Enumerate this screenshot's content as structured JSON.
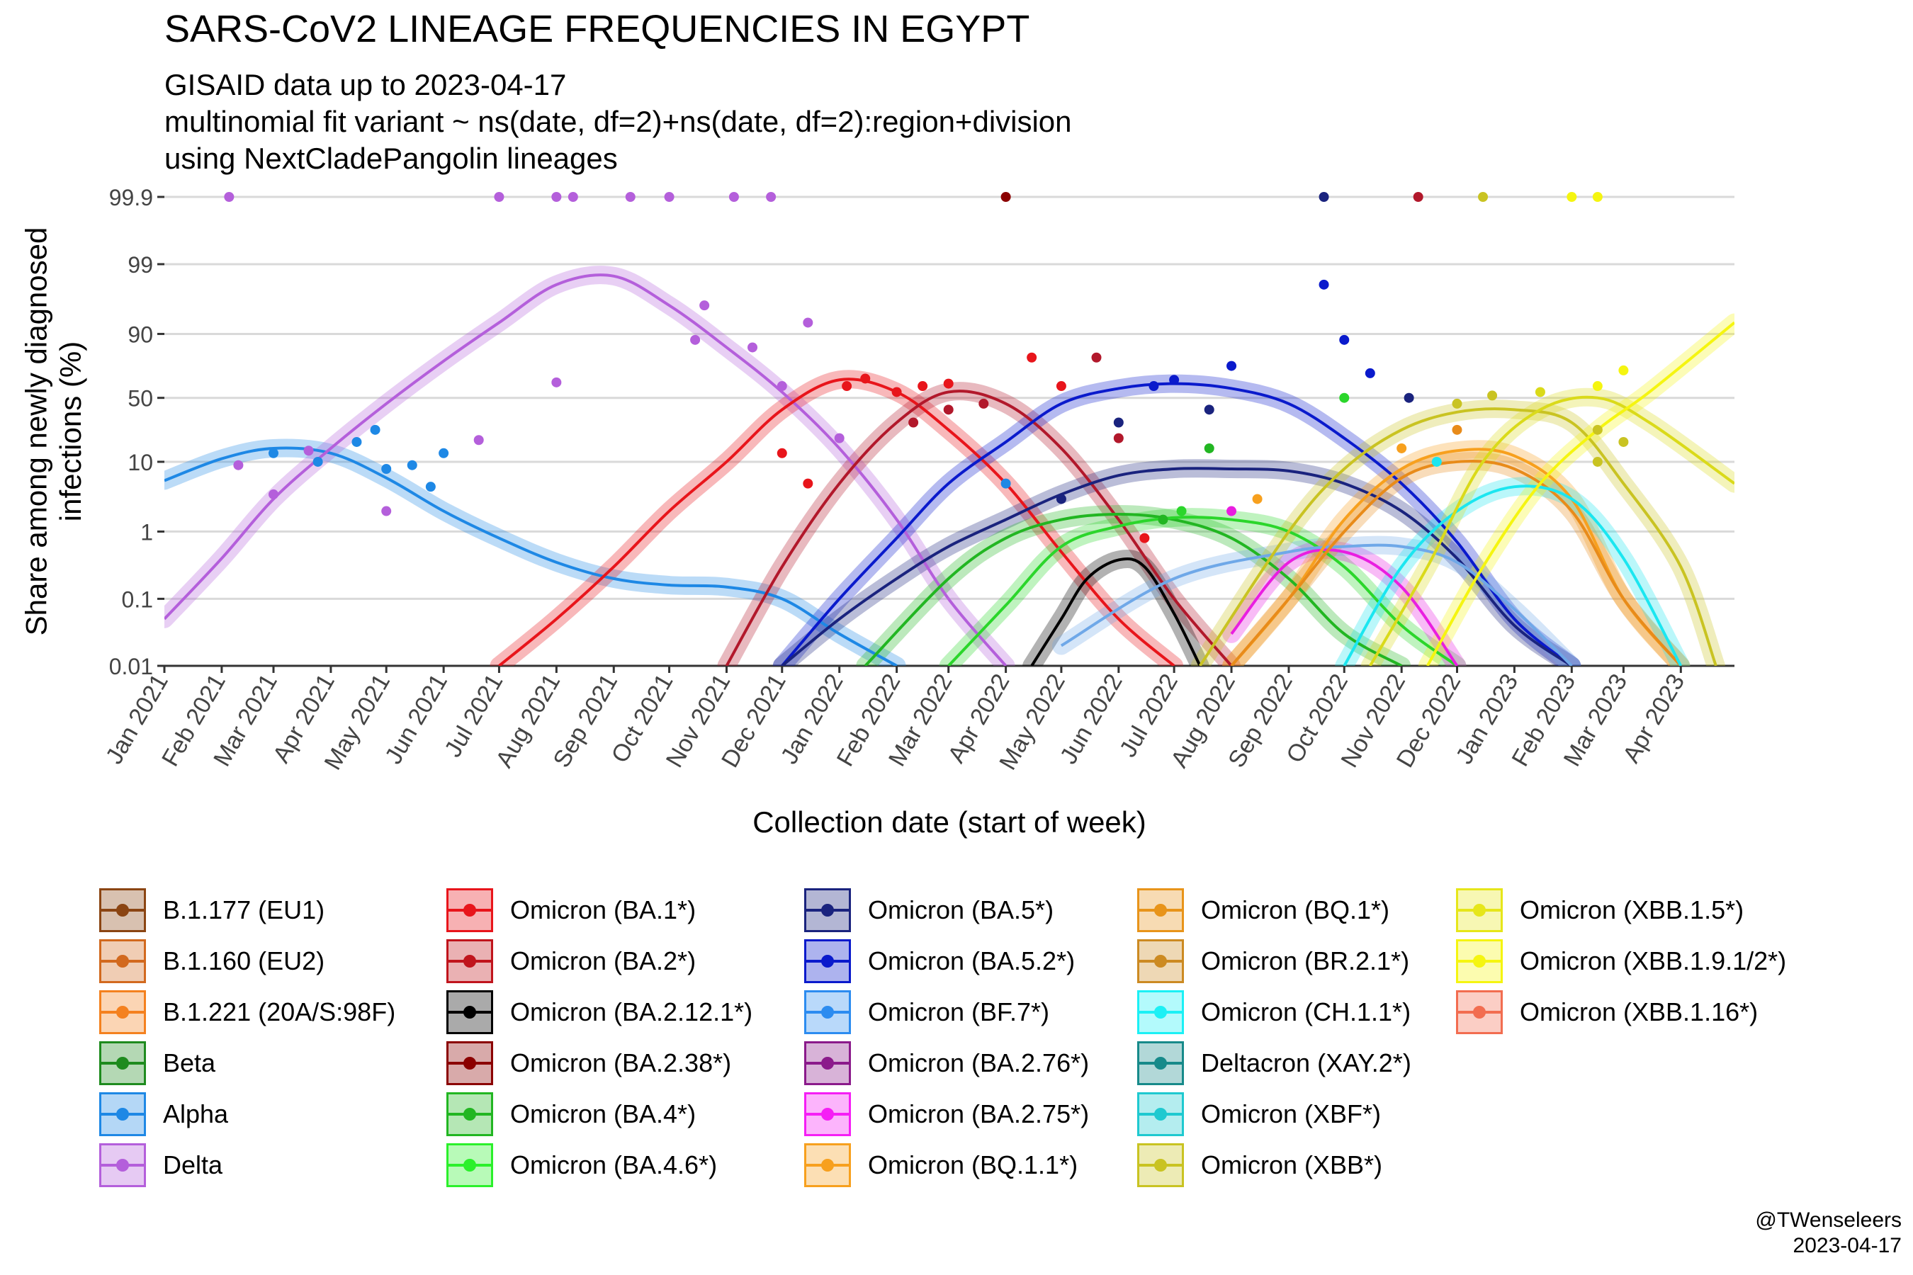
{
  "header": {
    "title": "SARS-CoV2 LINEAGE FREQUENCIES IN EGYPT",
    "subtitle": "GISAID data up to 2023-04-17\nmultinomial fit variant ~ ns(date, df=2)+ns(date, df=2):region+division\nusing NextCladePangolin lineages"
  },
  "caption": {
    "line1": "@TWenseleers",
    "line2": "2023-04-17"
  },
  "chart_data": {
    "type": "line",
    "xlabel": "Collection date (start of week)",
    "ylabel": "Share among newly diagnosed infections (%)",
    "y_scale": "logit",
    "y_ticks": [
      "0.01",
      "0.1",
      "1",
      "10",
      "50",
      "90",
      "99",
      "99.9"
    ],
    "x_ticks": [
      "Jan 2021",
      "Feb 2021",
      "Mar 2021",
      "Apr 2021",
      "May 2021",
      "Jun 2021",
      "Jul 2021",
      "Aug 2021",
      "Sep 2021",
      "Oct 2021",
      "Nov 2021",
      "Dec 2021",
      "Jan 2022",
      "Feb 2022",
      "Mar 2022",
      "Apr 2022",
      "May 2022",
      "Jun 2022",
      "Jul 2022",
      "Aug 2022",
      "Sep 2022",
      "Oct 2022",
      "Nov 2022",
      "Dec 2022",
      "Jan 2023",
      "Feb 2023",
      "Mar 2023",
      "Apr 2023"
    ],
    "xlim": [
      "2021-01-01",
      "2023-04-30"
    ],
    "ylim": [
      0.01,
      99.9
    ],
    "series": [
      {
        "name": "Alpha",
        "color": "#1E88E5",
        "peak_date": "2021-03-10",
        "x": [
          "2021-01-01",
          "2021-02-01",
          "2021-03-01",
          "2021-04-01",
          "2021-05-01",
          "2021-06-01",
          "2021-07-01",
          "2021-08-01",
          "2021-09-01",
          "2021-10-01",
          "2021-11-01",
          "2021-12-01",
          "2022-01-01",
          "2022-02-01"
        ],
        "values": [
          5.5,
          11,
          15,
          13,
          6,
          2,
          0.8,
          0.35,
          0.2,
          0.16,
          0.15,
          0.1,
          0.03,
          0.01
        ]
      },
      {
        "name": "Delta",
        "color": "#B45FDB",
        "peak_date": "2021-08-25",
        "x": [
          "2021-01-01",
          "2021-02-01",
          "2021-03-01",
          "2021-04-01",
          "2021-05-01",
          "2021-06-01",
          "2021-07-01",
          "2021-08-01",
          "2021-09-01",
          "2021-10-01",
          "2021-11-01",
          "2021-12-01",
          "2022-01-01",
          "2022-02-01",
          "2022-03-01",
          "2022-04-01"
        ],
        "values": [
          0.05,
          0.4,
          3,
          15,
          45,
          78,
          93,
          98,
          98.5,
          96,
          85,
          55,
          15,
          1.5,
          0.1,
          0.01
        ]
      },
      {
        "name": "Omicron (BA.1*)",
        "color": "#E8151B",
        "peak_date": "2022-01-15",
        "x": [
          "2021-07-01",
          "2021-08-01",
          "2021-09-01",
          "2021-10-01",
          "2021-11-01",
          "2021-12-01",
          "2022-01-01",
          "2022-02-01",
          "2022-03-01",
          "2022-04-01",
          "2022-05-01",
          "2022-06-01",
          "2022-07-01"
        ],
        "values": [
          0.01,
          0.05,
          0.3,
          2,
          10,
          40,
          65,
          55,
          25,
          5,
          0.5,
          0.05,
          0.01
        ]
      },
      {
        "name": "Omicron (BA.2*)",
        "color": "#B2182B",
        "peak_date": "2022-03-10",
        "x": [
          "2021-11-01",
          "2021-12-01",
          "2022-01-01",
          "2022-02-01",
          "2022-03-01",
          "2022-04-01",
          "2022-05-01",
          "2022-06-01",
          "2022-07-01",
          "2022-08-01"
        ],
        "values": [
          0.01,
          0.3,
          5,
          30,
          55,
          45,
          15,
          1.5,
          0.1,
          0.01
        ]
      },
      {
        "name": "Omicron (BA.5.2*)",
        "color": "#0A1ACC",
        "peak_date": "2022-07-01",
        "x": [
          "2021-12-01",
          "2022-01-01",
          "2022-02-01",
          "2022-03-01",
          "2022-04-01",
          "2022-05-01",
          "2022-06-01",
          "2022-07-01",
          "2022-08-01",
          "2022-09-01",
          "2022-10-01",
          "2022-11-01",
          "2022-12-01",
          "2023-01-01",
          "2023-02-01"
        ],
        "values": [
          0.01,
          0.1,
          0.8,
          5,
          18,
          45,
          58,
          62,
          58,
          45,
          20,
          5,
          0.7,
          0.05,
          0.01
        ]
      },
      {
        "name": "Omicron (BA.5*)",
        "color": "#1A237E",
        "peak_date": "2022-08-15",
        "x": [
          "2021-12-01",
          "2022-01-01",
          "2022-02-01",
          "2022-03-01",
          "2022-04-01",
          "2022-05-01",
          "2022-06-01",
          "2022-07-01",
          "2022-08-01",
          "2022-09-01",
          "2022-10-01",
          "2022-11-01",
          "2022-12-01",
          "2023-01-01",
          "2023-02-01"
        ],
        "values": [
          0.01,
          0.05,
          0.2,
          0.6,
          1.5,
          3.5,
          6.5,
          8,
          8,
          7.5,
          5,
          2,
          0.4,
          0.04,
          0.01
        ]
      },
      {
        "name": "Omicron (BA.4*)",
        "color": "#22B622",
        "peak_date": "2022-06-15",
        "x": [
          "2022-01-15",
          "2022-03-01",
          "2022-04-01",
          "2022-05-01",
          "2022-06-01",
          "2022-07-01",
          "2022-08-01",
          "2022-09-01",
          "2022-10-01",
          "2022-11-01"
        ],
        "values": [
          0.01,
          0.2,
          0.8,
          1.5,
          1.8,
          1.5,
          0.8,
          0.2,
          0.03,
          0.01
        ]
      },
      {
        "name": "Omicron (BA.4.6*)",
        "color": "#2BD62B",
        "peak_date": "2022-07-15",
        "x": [
          "2022-03-01",
          "2022-04-01",
          "2022-05-01",
          "2022-06-01",
          "2022-07-01",
          "2022-08-01",
          "2022-09-01",
          "2022-10-01",
          "2022-11-01",
          "2022-12-01"
        ],
        "values": [
          0.01,
          0.08,
          0.6,
          1.2,
          1.6,
          1.5,
          1,
          0.3,
          0.04,
          0.01
        ]
      },
      {
        "name": "Omicron (BA.2.12.1*)",
        "color": "#000000",
        "peak_date": "2022-06-10",
        "x": [
          "2022-04-15",
          "2022-05-01",
          "2022-05-15",
          "2022-06-01",
          "2022-06-15",
          "2022-07-01",
          "2022-07-15"
        ],
        "values": [
          0.01,
          0.05,
          0.2,
          0.38,
          0.3,
          0.06,
          0.01
        ]
      },
      {
        "name": "Omicron (BA.2.75*)",
        "color": "#E91EE0",
        "peak_date": "2022-09-25",
        "x": [
          "2022-08-01",
          "2022-09-01",
          "2022-10-01",
          "2022-11-01",
          "2022-12-01"
        ],
        "values": [
          0.03,
          0.35,
          0.5,
          0.15,
          0.01
        ]
      },
      {
        "name": "Omicron (BF.7*)",
        "color": "#6FA8E8",
        "peak_date": "2022-10-20",
        "x": [
          "2022-05-01",
          "2022-07-01",
          "2022-09-01",
          "2022-10-01",
          "2022-11-01",
          "2022-12-01",
          "2023-01-01",
          "2023-02-01"
        ],
        "values": [
          0.02,
          0.2,
          0.5,
          0.6,
          0.6,
          0.35,
          0.07,
          0.01
        ]
      },
      {
        "name": "Omicron (BQ.1.1*)",
        "color": "#F7A01E",
        "peak_date": "2022-12-20",
        "x": [
          "2022-08-01",
          "2022-09-01",
          "2022-10-01",
          "2022-11-01",
          "2022-12-01",
          "2023-01-01",
          "2023-02-01",
          "2023-03-01",
          "2023-04-01"
        ],
        "values": [
          0.01,
          0.1,
          1.5,
          8,
          14,
          12,
          3,
          0.1,
          0.01
        ]
      },
      {
        "name": "Omicron (BQ.1*)",
        "color": "#E88B1A",
        "peak_date": "2022-12-15",
        "x": [
          "2022-08-01",
          "2022-09-01",
          "2022-10-01",
          "2022-11-01",
          "2022-12-01",
          "2023-01-01",
          "2023-02-01",
          "2023-03-01",
          "2023-04-01"
        ],
        "values": [
          0.01,
          0.1,
          1,
          6,
          10,
          8,
          2,
          0.1,
          0.01
        ]
      },
      {
        "name": "Omicron (CH.1.1*)",
        "color": "#1BE6F0",
        "peak_date": "2023-01-15",
        "x": [
          "2022-10-01",
          "2022-11-01",
          "2022-12-01",
          "2023-01-01",
          "2023-02-01",
          "2023-03-01",
          "2023-04-01"
        ],
        "values": [
          0.01,
          0.3,
          2,
          4.5,
          3,
          0.4,
          0.01
        ]
      },
      {
        "name": "Omicron (XBB*)",
        "color": "#C9C322",
        "peak_date": "2022-12-20",
        "x": [
          "2022-07-15",
          "2022-09-01",
          "2022-10-01",
          "2022-11-01",
          "2022-12-01",
          "2023-01-01",
          "2023-02-01",
          "2023-03-01",
          "2023-04-01",
          "2023-04-20"
        ],
        "values": [
          0.01,
          1,
          8,
          25,
          38,
          40,
          30,
          5,
          0.3,
          0.01
        ]
      },
      {
        "name": "Omicron (XBB.1.5*)",
        "color": "#DADA1A",
        "peak_date": "2023-02-01",
        "x": [
          "2022-10-15",
          "2022-11-15",
          "2022-12-15",
          "2023-01-15",
          "2023-02-15",
          "2023-03-15",
          "2023-04-30"
        ],
        "values": [
          0.01,
          0.3,
          10,
          40,
          50,
          30,
          5
        ]
      },
      {
        "name": "Omicron (XBB.1.9.1/2*)",
        "color": "#F5F510",
        "peak_date": "2023-04-30",
        "x": [
          "2022-11-15",
          "2022-12-15",
          "2023-01-15",
          "2023-02-15",
          "2023-03-15",
          "2023-04-30"
        ],
        "values": [
          0.01,
          0.3,
          5,
          25,
          55,
          93
        ]
      }
    ],
    "points": [
      {
        "x": "2021-02-05",
        "y": 99.9,
        "color": "#B45FDB"
      },
      {
        "x": "2021-07-01",
        "y": 99.9,
        "color": "#B45FDB"
      },
      {
        "x": "2021-08-01",
        "y": 99.9,
        "color": "#B45FDB"
      },
      {
        "x": "2021-08-10",
        "y": 99.9,
        "color": "#B45FDB"
      },
      {
        "x": "2021-09-10",
        "y": 99.9,
        "color": "#B45FDB"
      },
      {
        "x": "2021-10-01",
        "y": 99.9,
        "color": "#B45FDB"
      },
      {
        "x": "2021-11-05",
        "y": 99.9,
        "color": "#B45FDB"
      },
      {
        "x": "2021-11-25",
        "y": 99.9,
        "color": "#B45FDB"
      },
      {
        "x": "2022-04-01",
        "y": 99.9,
        "color": "#8B0000"
      },
      {
        "x": "2021-02-10",
        "y": 9,
        "color": "#B45FDB"
      },
      {
        "x": "2021-03-01",
        "y": 3.5,
        "color": "#B45FDB"
      },
      {
        "x": "2021-03-20",
        "y": 14,
        "color": "#B45FDB"
      },
      {
        "x": "2021-03-01",
        "y": 13,
        "color": "#1E88E5"
      },
      {
        "x": "2021-03-25",
        "y": 10,
        "color": "#1E88E5"
      },
      {
        "x": "2021-04-15",
        "y": 18,
        "color": "#1E88E5"
      },
      {
        "x": "2021-04-25",
        "y": 25,
        "color": "#1E88E5"
      },
      {
        "x": "2021-05-01",
        "y": 8,
        "color": "#1E88E5"
      },
      {
        "x": "2021-05-15",
        "y": 9,
        "color": "#1E88E5"
      },
      {
        "x": "2021-05-25",
        "y": 4.5,
        "color": "#1E88E5"
      },
      {
        "x": "2021-06-01",
        "y": 13,
        "color": "#1E88E5"
      },
      {
        "x": "2021-05-01",
        "y": 2,
        "color": "#B45FDB"
      },
      {
        "x": "2021-06-20",
        "y": 19,
        "color": "#B45FDB"
      },
      {
        "x": "2021-08-01",
        "y": 63,
        "color": "#B45FDB"
      },
      {
        "x": "2021-10-20",
        "y": 96,
        "color": "#B45FDB"
      },
      {
        "x": "2021-10-15",
        "y": 88,
        "color": "#B45FDB"
      },
      {
        "x": "2021-11-15",
        "y": 85,
        "color": "#B45FDB"
      },
      {
        "x": "2021-12-01",
        "y": 60,
        "color": "#B45FDB"
      },
      {
        "x": "2021-12-15",
        "y": 93,
        "color": "#B45FDB"
      },
      {
        "x": "2022-01-01",
        "y": 20,
        "color": "#B45FDB"
      },
      {
        "x": "2021-12-01",
        "y": 13,
        "color": "#E8151B"
      },
      {
        "x": "2021-12-15",
        "y": 5,
        "color": "#E8151B"
      },
      {
        "x": "2022-01-05",
        "y": 60,
        "color": "#E8151B"
      },
      {
        "x": "2022-01-15",
        "y": 66,
        "color": "#E8151B"
      },
      {
        "x": "2022-02-01",
        "y": 55,
        "color": "#E8151B"
      },
      {
        "x": "2022-02-15",
        "y": 60,
        "color": "#E8151B"
      },
      {
        "x": "2022-03-01",
        "y": 62,
        "color": "#E8151B"
      },
      {
        "x": "2022-02-10",
        "y": 30,
        "color": "#B2182B"
      },
      {
        "x": "2022-03-01",
        "y": 40,
        "color": "#B2182B"
      },
      {
        "x": "2022-03-20",
        "y": 45,
        "color": "#B2182B"
      },
      {
        "x": "2022-04-15",
        "y": 80,
        "color": "#E8151B"
      },
      {
        "x": "2022-05-01",
        "y": 60,
        "color": "#E8151B"
      },
      {
        "x": "2022-05-20",
        "y": 80,
        "color": "#B2182B"
      },
      {
        "x": "2022-06-01",
        "y": 20,
        "color": "#B2182B"
      },
      {
        "x": "2022-04-01",
        "y": 5,
        "color": "#1E88E5"
      },
      {
        "x": "2022-05-01",
        "y": 3,
        "color": "#1A237E"
      },
      {
        "x": "2022-06-01",
        "y": 30,
        "color": "#1A237E"
      },
      {
        "x": "2022-06-20",
        "y": 60,
        "color": "#0A1ACC"
      },
      {
        "x": "2022-07-01",
        "y": 65,
        "color": "#0A1ACC"
      },
      {
        "x": "2022-07-20",
        "y": 40,
        "color": "#1A237E"
      },
      {
        "x": "2022-08-01",
        "y": 75,
        "color": "#0A1ACC"
      },
      {
        "x": "2022-06-15",
        "y": 0.8,
        "color": "#E8151B"
      },
      {
        "x": "2022-06-25",
        "y": 1.5,
        "color": "#22B622"
      },
      {
        "x": "2022-07-05",
        "y": 2,
        "color": "#2BD62B"
      },
      {
        "x": "2022-07-20",
        "y": 15,
        "color": "#22B622"
      },
      {
        "x": "2022-08-01",
        "y": 2,
        "color": "#E91EE0"
      },
      {
        "x": "2022-08-15",
        "y": 3,
        "color": "#F7A01E"
      },
      {
        "x": "2022-09-20",
        "y": 98,
        "color": "#0A1ACC"
      },
      {
        "x": "2022-10-01",
        "y": 88,
        "color": "#0A1ACC"
      },
      {
        "x": "2022-10-15",
        "y": 70,
        "color": "#0A1ACC"
      },
      {
        "x": "2022-10-01",
        "y": 50,
        "color": "#2BD62B"
      },
      {
        "x": "2022-11-05",
        "y": 50,
        "color": "#1A237E"
      },
      {
        "x": "2022-11-01",
        "y": 15,
        "color": "#F7A01E"
      },
      {
        "x": "2022-11-20",
        "y": 10,
        "color": "#1BE6F0"
      },
      {
        "x": "2022-12-01",
        "y": 45,
        "color": "#C9C322"
      },
      {
        "x": "2022-12-20",
        "y": 52,
        "color": "#C9C322"
      },
      {
        "x": "2023-01-15",
        "y": 55,
        "color": "#DADA1A"
      },
      {
        "x": "2023-02-15",
        "y": 60,
        "color": "#F5F510"
      },
      {
        "x": "2023-03-01",
        "y": 72,
        "color": "#F5F510"
      },
      {
        "x": "2023-02-15",
        "y": 25,
        "color": "#C9C322"
      },
      {
        "x": "2023-03-01",
        "y": 18,
        "color": "#C9C322"
      },
      {
        "x": "2023-02-15",
        "y": 10,
        "color": "#C9C322"
      },
      {
        "x": "2022-12-01",
        "y": 25,
        "color": "#E88B1A"
      },
      {
        "x": "2022-12-15",
        "y": 99.9,
        "color": "#C9C322"
      },
      {
        "x": "2023-02-01",
        "y": 99.9,
        "color": "#F5F510"
      },
      {
        "x": "2023-02-15",
        "y": 99.9,
        "color": "#F5F510"
      },
      {
        "x": "2022-09-20",
        "y": 99.9,
        "color": "#1A237E"
      },
      {
        "x": "2022-11-10",
        "y": 99.9,
        "color": "#B2182B"
      }
    ]
  },
  "legend": [
    {
      "label": "B.1.177 (EU1)",
      "color": "#8B4513"
    },
    {
      "label": "B.1.160 (EU2)",
      "color": "#D2691E"
    },
    {
      "label": "B.1.221 (20A/S:98F)",
      "color": "#F4811F"
    },
    {
      "label": "Beta",
      "color": "#1E8B1E"
    },
    {
      "label": "Alpha",
      "color": "#1E88E5"
    },
    {
      "label": "Delta",
      "color": "#B45FDB"
    },
    {
      "label": "Omicron (BA.1*)",
      "color": "#E8151B"
    },
    {
      "label": "Omicron (BA.2*)",
      "color": "#C0141C"
    },
    {
      "label": "Omicron (BA.2.12.1*)",
      "color": "#000000"
    },
    {
      "label": "Omicron (BA.2.38*)",
      "color": "#8B0000"
    },
    {
      "label": "Omicron (BA.4*)",
      "color": "#22B622"
    },
    {
      "label": "Omicron (BA.4.6*)",
      "color": "#2BF02B"
    },
    {
      "label": "Omicron (BA.5*)",
      "color": "#1A237E"
    },
    {
      "label": "Omicron (BA.5.2*)",
      "color": "#0A1ACC"
    },
    {
      "label": "Omicron (BF.7*)",
      "color": "#2C8CF0"
    },
    {
      "label": "Omicron (BA.2.76*)",
      "color": "#8B1A8B"
    },
    {
      "label": "Omicron (BA.2.75*)",
      "color": "#F51EF5"
    },
    {
      "label": "Omicron (BQ.1.1*)",
      "color": "#F7A01E"
    },
    {
      "label": "Omicron (BQ.1*)",
      "color": "#E8941A"
    },
    {
      "label": "Omicron (BR.2.1*)",
      "color": "#CC8A22"
    },
    {
      "label": "Omicron (CH.1.1*)",
      "color": "#1BF0F5"
    },
    {
      "label": "Deltacron (XAY.2*)",
      "color": "#178A8A"
    },
    {
      "label": "Omicron (XBF*)",
      "color": "#1FC9D0"
    },
    {
      "label": "Omicron (XBB*)",
      "color": "#C9C322"
    },
    {
      "label": "Omicron (XBB.1.5*)",
      "color": "#E6E61A"
    },
    {
      "label": "Omicron (XBB.1.9.1/2*)",
      "color": "#F5F510"
    },
    {
      "label": "Omicron (XBB.1.16*)",
      "color": "#F26D50"
    }
  ]
}
